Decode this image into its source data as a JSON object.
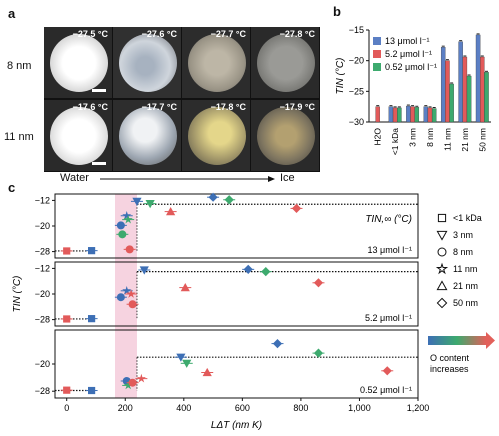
{
  "panels": {
    "a": "a",
    "b": "b",
    "c": "c"
  },
  "micrographs": {
    "row_labels": [
      "8 nm",
      "11 nm"
    ],
    "temps": [
      [
        "−27.5 °C",
        "−27.6 °C",
        "−27.7 °C",
        "−27.8 °C"
      ],
      [
        "−17.6 °C",
        "−17.7 °C",
        "−17.8 °C",
        "−17.9 °C"
      ]
    ],
    "arrow_left": "Water",
    "arrow_right": "Ice"
  },
  "chart_data": [
    {
      "type": "bar",
      "panel": "b",
      "categories": [
        "H2O",
        "<1 kDa",
        "3 nm",
        "8 nm",
        "11 nm",
        "21 nm",
        "50 nm"
      ],
      "ylabel": "TIN (°C)",
      "ylim": [
        -30,
        -15
      ],
      "yticks": [
        -15,
        -20,
        -25,
        -30
      ],
      "legend_placement": "top-left",
      "series": [
        {
          "name": "13 μmol l⁻¹",
          "color": "#5b7fc4",
          "values": [
            null,
            -27.5,
            -27.4,
            -27.5,
            -17.8,
            -16.9,
            -15.8
          ]
        },
        {
          "name": "5.2 μmol l⁻¹",
          "color": "#e25a5a",
          "values": [
            -27.5,
            -27.7,
            -27.5,
            -27.7,
            -20.0,
            -19.4,
            -19.4
          ]
        },
        {
          "name": "0.52 μmol l⁻¹",
          "color": "#3daa6e",
          "values": [
            null,
            -27.7,
            -27.6,
            -27.8,
            -23.8,
            -22.5,
            -21.9
          ]
        }
      ]
    },
    {
      "type": "scatter",
      "panel": "c",
      "xlabel": "LΔT (nm K)",
      "ylabel": "TIN (°C)",
      "xlim": [
        -40,
        1200
      ],
      "xticks": [
        0,
        200,
        400,
        600,
        800,
        1000,
        1200
      ],
      "xtick_labels": [
        "0",
        "200",
        "400",
        "600",
        "800",
        "1,000",
        "1,200"
      ],
      "limit_label": "TIN,∞ (°C)",
      "highlight_band_x": [
        165,
        240
      ],
      "subplots": [
        {
          "concentration": "13 μmol l⁻¹",
          "ylim": [
            -30,
            -10
          ],
          "yticks": [
            -12,
            -20,
            -28
          ],
          "limit_y": -13.2,
          "points": [
            {
              "x": 0,
              "y": -27.8,
              "marker": "square",
              "color": "#e25a5a"
            },
            {
              "x": 85,
              "y": -27.7,
              "marker": "square",
              "color": "#3d6fb5"
            },
            {
              "x": 185,
              "y": -19.8,
              "marker": "circle",
              "color": "#3d6fb5"
            },
            {
              "x": 190,
              "y": -22.6,
              "marker": "circle",
              "color": "#3daa6e"
            },
            {
              "x": 205,
              "y": -16.8,
              "marker": "star",
              "color": "#3d6fb5"
            },
            {
              "x": 210,
              "y": -18.0,
              "marker": "star",
              "color": "#3daa6e"
            },
            {
              "x": 215,
              "y": -27.3,
              "marker": "circle",
              "color": "#e25a5a"
            },
            {
              "x": 240,
              "y": -12.3,
              "marker": "triangle-down",
              "color": "#3d6fb5"
            },
            {
              "x": 285,
              "y": -13.0,
              "marker": "triangle-down",
              "color": "#3daa6e"
            },
            {
              "x": 355,
              "y": -15.5,
              "marker": "triangle",
              "color": "#e25a5a"
            },
            {
              "x": 500,
              "y": -11.0,
              "marker": "diamond",
              "color": "#3d6fb5"
            },
            {
              "x": 555,
              "y": -11.8,
              "marker": "diamond",
              "color": "#3daa6e"
            },
            {
              "x": 785,
              "y": -14.5,
              "marker": "diamond",
              "color": "#e25a5a"
            }
          ]
        },
        {
          "concentration": "5.2 μmol l⁻¹",
          "ylim": [
            -30,
            -10
          ],
          "yticks": [
            -12,
            -20,
            -28
          ],
          "limit_y": -13.0,
          "points": [
            {
              "x": 0,
              "y": -27.8,
              "marker": "square",
              "color": "#e25a5a"
            },
            {
              "x": 85,
              "y": -27.7,
              "marker": "square",
              "color": "#3d6fb5"
            },
            {
              "x": 185,
              "y": -21.0,
              "marker": "circle",
              "color": "#3d6fb5"
            },
            {
              "x": 205,
              "y": -19.0,
              "marker": "star",
              "color": "#3d6fb5"
            },
            {
              "x": 220,
              "y": -20.0,
              "marker": "star",
              "color": "#e25a5a"
            },
            {
              "x": 225,
              "y": -23.2,
              "marker": "circle",
              "color": "#e25a5a"
            },
            {
              "x": 265,
              "y": -12.5,
              "marker": "triangle-down",
              "color": "#3d6fb5"
            },
            {
              "x": 405,
              "y": -18.0,
              "marker": "triangle",
              "color": "#e25a5a"
            },
            {
              "x": 620,
              "y": -12.3,
              "marker": "diamond",
              "color": "#3d6fb5"
            },
            {
              "x": 680,
              "y": -13.0,
              "marker": "diamond",
              "color": "#3daa6e"
            },
            {
              "x": 860,
              "y": -16.5,
              "marker": "diamond",
              "color": "#e25a5a"
            }
          ]
        },
        {
          "concentration": "0.52 μmol l⁻¹",
          "ylim": [
            -30,
            -10
          ],
          "yticks": [
            -20,
            -28
          ],
          "limit_y": -18.0,
          "points": [
            {
              "x": 0,
              "y": -27.7,
              "marker": "square",
              "color": "#e25a5a"
            },
            {
              "x": 85,
              "y": -27.8,
              "marker": "square",
              "color": "#3d6fb5"
            },
            {
              "x": 205,
              "y": -25.0,
              "marker": "circle",
              "color": "#3d6fb5"
            },
            {
              "x": 210,
              "y": -26.3,
              "marker": "star",
              "color": "#3daa6e"
            },
            {
              "x": 225,
              "y": -25.5,
              "marker": "circle",
              "color": "#e25a5a"
            },
            {
              "x": 255,
              "y": -24.3,
              "marker": "star",
              "color": "#e25a5a"
            },
            {
              "x": 390,
              "y": -18.0,
              "marker": "triangle-down",
              "color": "#3d6fb5"
            },
            {
              "x": 410,
              "y": -19.8,
              "marker": "triangle-down",
              "color": "#3daa6e"
            },
            {
              "x": 480,
              "y": -22.5,
              "marker": "triangle",
              "color": "#e25a5a"
            },
            {
              "x": 720,
              "y": -14.0,
              "marker": "diamond",
              "color": "#3d6fb5"
            },
            {
              "x": 860,
              "y": -16.8,
              "marker": "diamond",
              "color": "#3daa6e"
            },
            {
              "x": 1095,
              "y": -22.0,
              "marker": "diamond",
              "color": "#e25a5a"
            }
          ]
        }
      ],
      "legend": [
        {
          "marker": "square",
          "label": "<1 kDa"
        },
        {
          "marker": "triangle-down",
          "label": "3 nm"
        },
        {
          "marker": "circle",
          "label": "8 nm"
        },
        {
          "marker": "star",
          "label": "11 nm"
        },
        {
          "marker": "triangle",
          "label": "21 nm"
        },
        {
          "marker": "diamond",
          "label": "50 nm"
        }
      ],
      "gradient_label": "O content increases"
    }
  ]
}
